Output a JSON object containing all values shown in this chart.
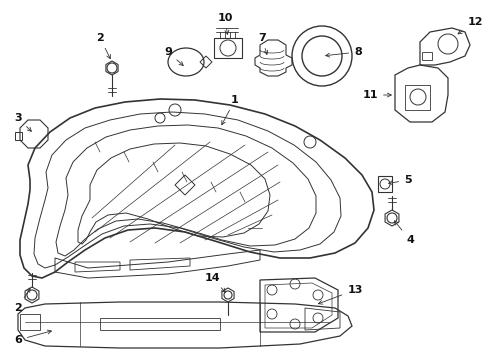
{
  "bg_color": "#ffffff",
  "line_color": "#333333",
  "label_color": "#111111",
  "fig_w": 4.89,
  "fig_h": 3.6,
  "dpi": 100
}
